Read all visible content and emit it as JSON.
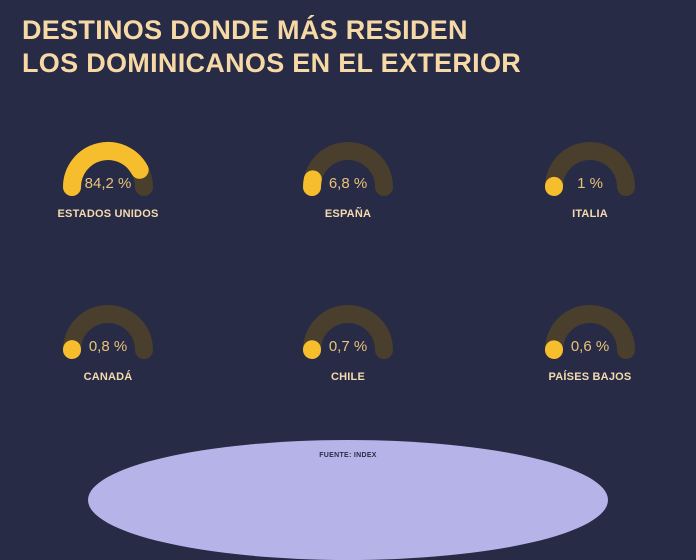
{
  "title": {
    "line1": "DESTINOS DONDE MÁS RESIDEN",
    "line2": "LOS DOMINICANOS EN EL EXTERIOR"
  },
  "source": "FUENTE: INDEX",
  "colors": {
    "background": "#272b45",
    "track": "#4a3f2c",
    "fill": "#f6be2c",
    "title": "#f7d9a6",
    "value": "#e9c27a",
    "footer": "#b5b3e8"
  },
  "chart_data": {
    "type": "gauge",
    "unit": "%",
    "categories": [
      "ESTADOS UNIDOS",
      "ESPAÑA",
      "ITALIA",
      "CANADÁ",
      "CHILE",
      "PAÍSES BAJOS"
    ],
    "values": [
      84.2,
      6.8,
      1,
      0.8,
      0.7,
      0.6
    ],
    "value_labels": [
      "84,2 %",
      "6,8 %",
      "1 %",
      "0,8 %",
      "0,7 %",
      "0,6 %"
    ],
    "range": [
      0,
      100
    ]
  }
}
